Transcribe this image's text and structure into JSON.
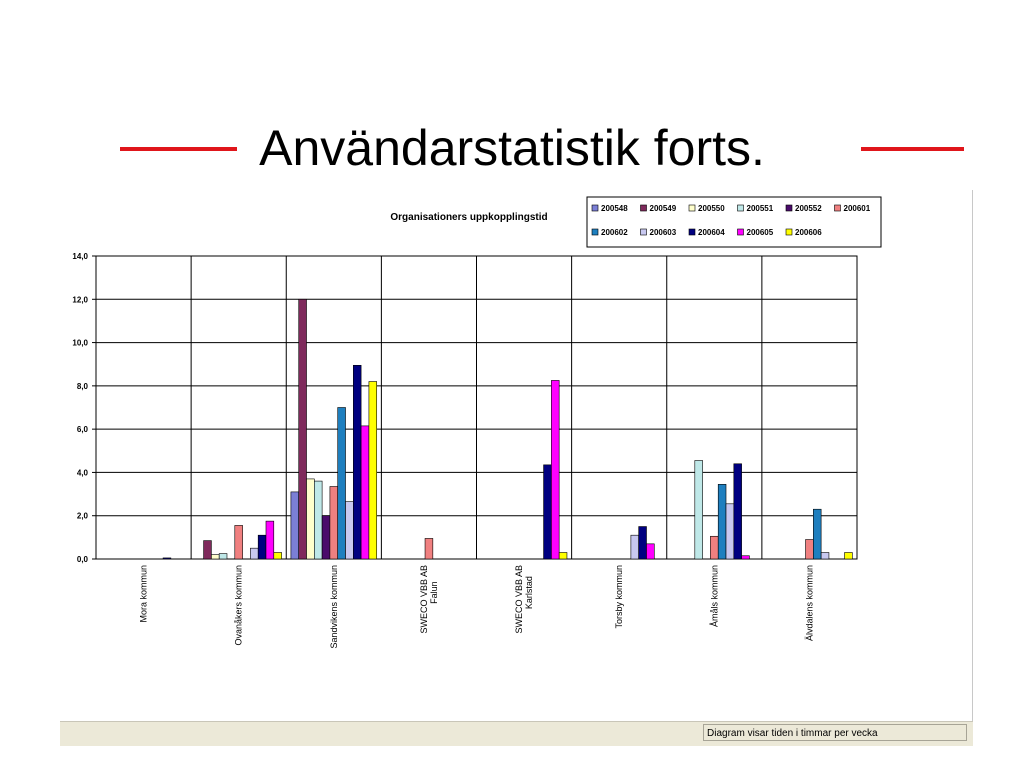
{
  "slide": {
    "title": "Användarstatistik forts.",
    "accent_color": "#e0161b"
  },
  "status": {
    "text": "Diagram visar tiden i timmar per vecka"
  },
  "chart_data": {
    "type": "bar",
    "title": "Organisationers uppkopplingstid",
    "xlabel": "",
    "ylabel": "",
    "ylim": [
      0,
      14
    ],
    "yticks": [
      "0,0",
      "2,0",
      "4,0",
      "6,0",
      "8,0",
      "10,0",
      "12,0",
      "14,0"
    ],
    "grid": true,
    "legend_position": "top-right",
    "categories": [
      [
        "Mora kommun"
      ],
      [
        "Ovanåkers kommun"
      ],
      [
        "Sandvikens kommun"
      ],
      [
        "SWECO VBB AB",
        "Falun"
      ],
      [
        "SWECO VBB AB",
        "Karlstad"
      ],
      [
        "Torsby kommun"
      ],
      [
        "Åmåls kommun"
      ],
      [
        "Älvdalens kommun"
      ]
    ],
    "series": [
      {
        "name": "200548",
        "color": "#7b7fd6",
        "values": [
          0,
          0,
          3.1,
          0,
          0,
          0,
          0,
          0
        ]
      },
      {
        "name": "200549",
        "color": "#7f2a5c",
        "values": [
          0,
          0.85,
          12.0,
          0,
          0,
          0,
          0,
          0
        ]
      },
      {
        "name": "200550",
        "color": "#ffffcc",
        "values": [
          0,
          0.2,
          3.7,
          0,
          0,
          0,
          0,
          0
        ]
      },
      {
        "name": "200551",
        "color": "#bfe8e8",
        "values": [
          0,
          0.25,
          3.6,
          0,
          0,
          0,
          4.55,
          0
        ]
      },
      {
        "name": "200552",
        "color": "#4a0b6b",
        "values": [
          0,
          0,
          2.0,
          0,
          0,
          0,
          0,
          0
        ]
      },
      {
        "name": "200601",
        "color": "#f08080",
        "values": [
          0,
          1.55,
          3.35,
          0.95,
          0,
          0,
          1.05,
          0.9
        ]
      },
      {
        "name": "200602",
        "color": "#1e7fbf",
        "values": [
          0,
          0,
          7.0,
          0,
          0,
          0,
          3.45,
          2.3
        ]
      },
      {
        "name": "200603",
        "color": "#c8c8f0",
        "values": [
          0,
          0.5,
          2.65,
          0,
          0,
          1.1,
          2.55,
          0.3
        ]
      },
      {
        "name": "200604",
        "color": "#000080",
        "values": [
          0.05,
          1.1,
          8.95,
          0,
          4.35,
          1.5,
          4.4,
          0
        ]
      },
      {
        "name": "200605",
        "color": "#ff00ff",
        "values": [
          0,
          1.75,
          6.15,
          0,
          8.25,
          0.7,
          0.15,
          0
        ]
      },
      {
        "name": "200606",
        "color": "#ffff00",
        "values": [
          0,
          0.3,
          8.2,
          0,
          0.3,
          0,
          0,
          0.3
        ]
      }
    ]
  }
}
